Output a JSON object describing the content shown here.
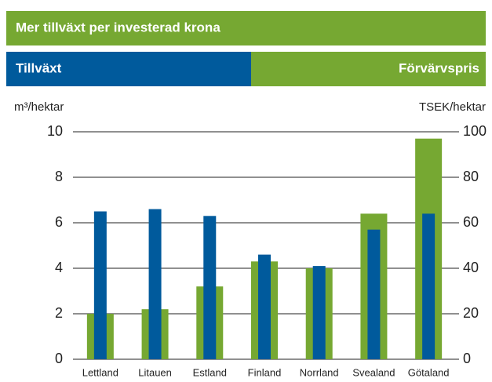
{
  "chart_data": {
    "type": "bar",
    "title": "Mer tillväxt per investerad krona",
    "ylabel": "m³/hektar",
    "y2label": "TSEK/hektar",
    "categories": [
      "Lettland",
      "Litauen",
      "Estland",
      "Finland",
      "Norrland",
      "Svealand",
      "Götaland"
    ],
    "series": [
      {
        "name": "Tillväxt",
        "color": "#005a9c",
        "values": [
          6.5,
          6.6,
          6.3,
          4.6,
          4.1,
          5.7,
          6.4
        ]
      },
      {
        "name": "Förvärvspris",
        "color": "#76a832",
        "axis": "y2",
        "values": [
          20,
          22,
          32,
          43,
          40,
          64,
          97
        ]
      }
    ],
    "ylim": [
      0,
      10
    ],
    "yticks": [
      0,
      2,
      4,
      6,
      8,
      10
    ],
    "y2lim": [
      0,
      100
    ],
    "y2ticks": [
      0,
      20,
      40,
      60,
      80,
      100
    ],
    "grid": true
  }
}
